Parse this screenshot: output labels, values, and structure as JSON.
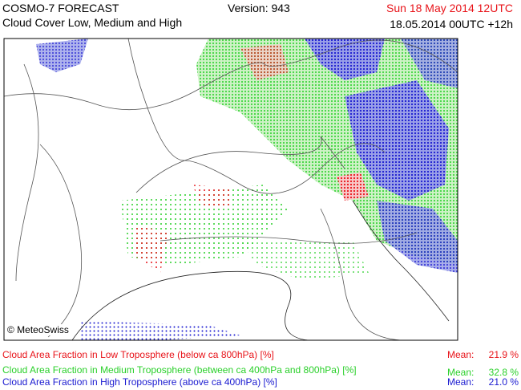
{
  "header": {
    "model": "COSMO-7 FORECAST",
    "product": "Cloud Cover Low, Medium and High",
    "version": "Version: 943",
    "valid_time": "Sun 18 May 2014 12UTC",
    "run": "18.05.2014 00UTC +12h"
  },
  "map": {
    "credit": "© MeteoSwiss"
  },
  "legend": [
    {
      "label": "Cloud Area Fraction in Low Troposphere (below ca 800hPa) [%]",
      "mean_label": "Mean:",
      "mean": "21.9 %",
      "color": "#e8141a"
    },
    {
      "label": "Cloud Area Fraction in Medium Troposphere (between ca 400hPa and 800hPa) [%]",
      "mean_label": "Mean:",
      "mean": "32.8 %",
      "color": "#2ad02a"
    },
    {
      "label": "Cloud Area Fraction in High Troposphere (above ca 400hPa) [%]",
      "mean_label": "Mean:",
      "mean": "21.0 %",
      "color": "#1a1ad0"
    }
  ]
}
